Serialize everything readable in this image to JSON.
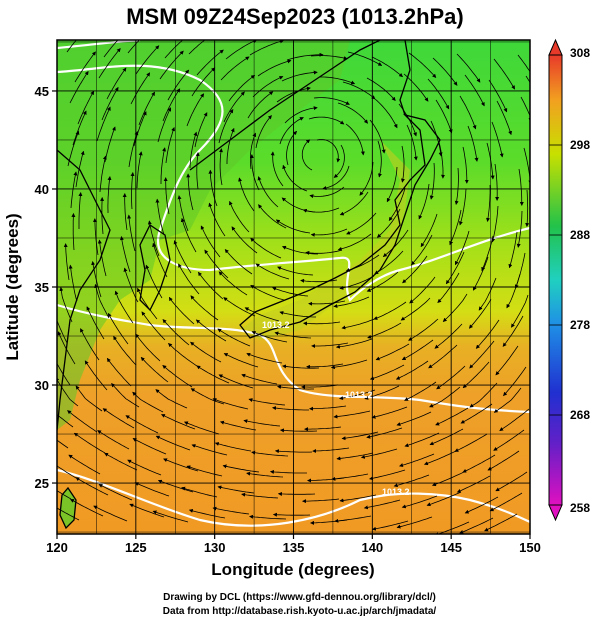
{
  "chart_data": {
    "type": "heatmap",
    "title": "MSM 09Z24Sep2023 (1013.2hPa)",
    "xlabel": "Longitude (degrees)",
    "ylabel": "Latitude  (degrees)",
    "xlim": [
      120,
      150
    ],
    "ylim": [
      22.4,
      47.6
    ],
    "x_ticks": [
      120,
      125,
      130,
      135,
      140,
      145,
      150
    ],
    "y_ticks": [
      25,
      30,
      35,
      40,
      45
    ],
    "grid": true,
    "colorbar": {
      "range": [
        258,
        308
      ],
      "ticks": [
        308,
        298,
        288,
        278,
        268,
        258
      ],
      "placement": "right",
      "colors": [
        "#e010c0",
        "#2020c8",
        "#1f8fe6",
        "#20d0c0",
        "#22c24a",
        "#c8e000",
        "#f2a020",
        "#e83a2a"
      ]
    },
    "contour_labels": [
      "1013.2",
      "1013.2",
      "1013.2"
    ],
    "field_samples": [
      {
        "lat": 46,
        "lon": 123,
        "value": 288
      },
      {
        "lat": 41,
        "lon": 127,
        "value": 289
      },
      {
        "lat": 38,
        "lon": 135,
        "value": 292
      },
      {
        "lat": 38,
        "lon": 147,
        "value": 293
      },
      {
        "lat": 34,
        "lon": 140,
        "value": 296
      },
      {
        "lat": 31,
        "lon": 130,
        "value": 299
      },
      {
        "lat": 28,
        "lon": 140,
        "value": 300
      },
      {
        "lat": 25,
        "lon": 146,
        "value": 300
      }
    ]
  },
  "credits": {
    "line1": "Drawing by DCL (https://www.gfd-dennou.org/library/dcl/)",
    "line2": "Data from http://database.rish.kyoto-u.ac.jp/arch/jmadata/"
  }
}
